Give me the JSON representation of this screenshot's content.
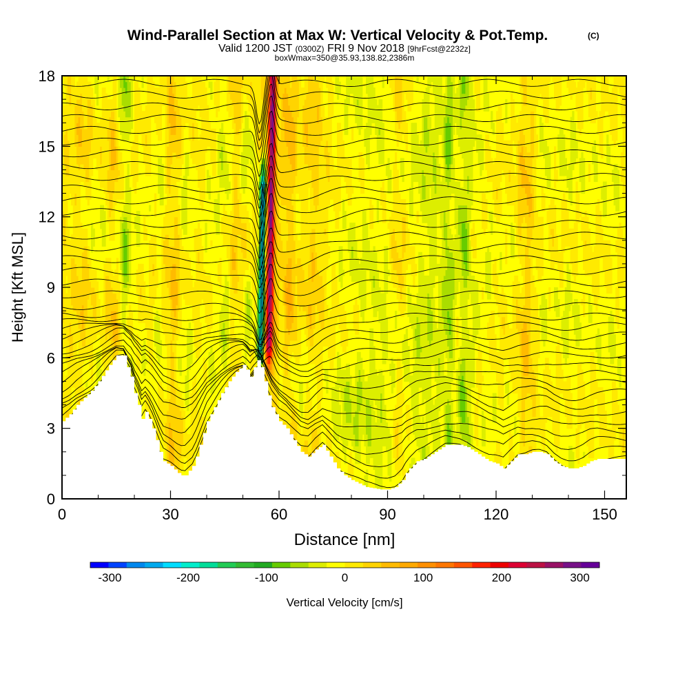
{
  "header": {
    "title_main": "Wind-Parallel Section at Max W: Vertical Velocity & Pot.Temp.",
    "title_mark": "(C)",
    "valid_a": "Valid 1200 JST",
    "valid_b": "(0300Z)",
    "valid_c": "FRI 9 Nov 2018",
    "valid_d": "[9hrFcst@2232z]",
    "box_info": "boxWmax=350@35.93,138.82,2386m"
  },
  "colors": {
    "terrain": "#ffffff",
    "contour": "#000000",
    "frame": "#000000",
    "scale": [
      "#0000ff",
      "#0044ff",
      "#0088ee",
      "#00aaee",
      "#00ddff",
      "#00eecc",
      "#00dd99",
      "#22cc55",
      "#33bb33",
      "#22aa22",
      "#66cc00",
      "#aadd00",
      "#ddee00",
      "#ffff00",
      "#ffea00",
      "#ffd400",
      "#ffbb00",
      "#ffaa00",
      "#ff9000",
      "#ff7700",
      "#ff5500",
      "#ff2200",
      "#ee0000",
      "#dd0033",
      "#bb1144",
      "#991166",
      "#771188",
      "#660099"
    ]
  },
  "chart_data": {
    "type": "heatmap",
    "title": "Wind-Parallel Section at Max W: Vertical Velocity & Pot.Temp.",
    "xlabel": "Distance [nm]",
    "ylabel": "Height [Kft MSL]",
    "xlim": [
      0,
      156
    ],
    "ylim": [
      0,
      18
    ],
    "x_ticks": [
      0,
      30,
      60,
      90,
      120,
      150
    ],
    "y_ticks": [
      0,
      3,
      6,
      9,
      12,
      15,
      18
    ],
    "colorbar": {
      "label": "Vertical Velocity [cm/s]",
      "range": [
        -325,
        325
      ],
      "ticks": [
        -300,
        -200,
        -100,
        0,
        100,
        200,
        300
      ]
    },
    "max_w_cm_s": 350,
    "terrain_profile": {
      "x": [
        0,
        2,
        4,
        6,
        8,
        10,
        13,
        15,
        17,
        18,
        19,
        20,
        21,
        22,
        23,
        24,
        25,
        26,
        27,
        28,
        30,
        32,
        33,
        34,
        35,
        36,
        37,
        38,
        39,
        40,
        42,
        44,
        46,
        48,
        50,
        51,
        52,
        53,
        54,
        55,
        56,
        57,
        58,
        59,
        60,
        62,
        64,
        66,
        68,
        70,
        72,
        74,
        76,
        78,
        80,
        84,
        88,
        90,
        92,
        94,
        95,
        96,
        98,
        100,
        102,
        104,
        106,
        108,
        110,
        112,
        114,
        116,
        118,
        120,
        121,
        122,
        124,
        126,
        128,
        130,
        132,
        134,
        136,
        138,
        140,
        142,
        144,
        146,
        148,
        150,
        152,
        154,
        156
      ],
      "height_kft": [
        3.3,
        3.6,
        4.0,
        4.3,
        4.6,
        5.0,
        5.7,
        6.1,
        6.1,
        5.6,
        5.2,
        4.5,
        4.0,
        3.4,
        3.7,
        3.4,
        3.0,
        2.5,
        2.0,
        1.6,
        1.4,
        1.1,
        1.0,
        1.0,
        1.2,
        1.4,
        1.8,
        2.3,
        2.8,
        3.3,
        3.9,
        4.5,
        5.0,
        5.4,
        5.7,
        5.5,
        5.2,
        5.6,
        5.9,
        5.6,
        5.0,
        4.4,
        3.9,
        3.6,
        3.3,
        3.0,
        2.5,
        2.0,
        1.8,
        2.1,
        2.3,
        1.8,
        1.3,
        1.0,
        0.8,
        0.5,
        0.4,
        0.4,
        0.5,
        0.8,
        1.1,
        1.3,
        1.6,
        1.7,
        1.9,
        2.1,
        2.3,
        2.3,
        2.3,
        2.2,
        2.0,
        1.8,
        1.6,
        1.5,
        1.4,
        1.3,
        1.6,
        1.9,
        1.9,
        2.0,
        2.0,
        1.9,
        1.6,
        1.4,
        1.3,
        1.3,
        1.4,
        1.6,
        1.7,
        1.7,
        1.7,
        1.7,
        1.7
      ]
    },
    "updraft_core": {
      "x_nm": 57,
      "height_range_kft": [
        5.5,
        18
      ],
      "w_cm_s": 250
    },
    "downdraft_core": {
      "x_nm": 55,
      "height_range_kft": [
        5.5,
        13.5
      ],
      "w_cm_s": -230
    }
  }
}
